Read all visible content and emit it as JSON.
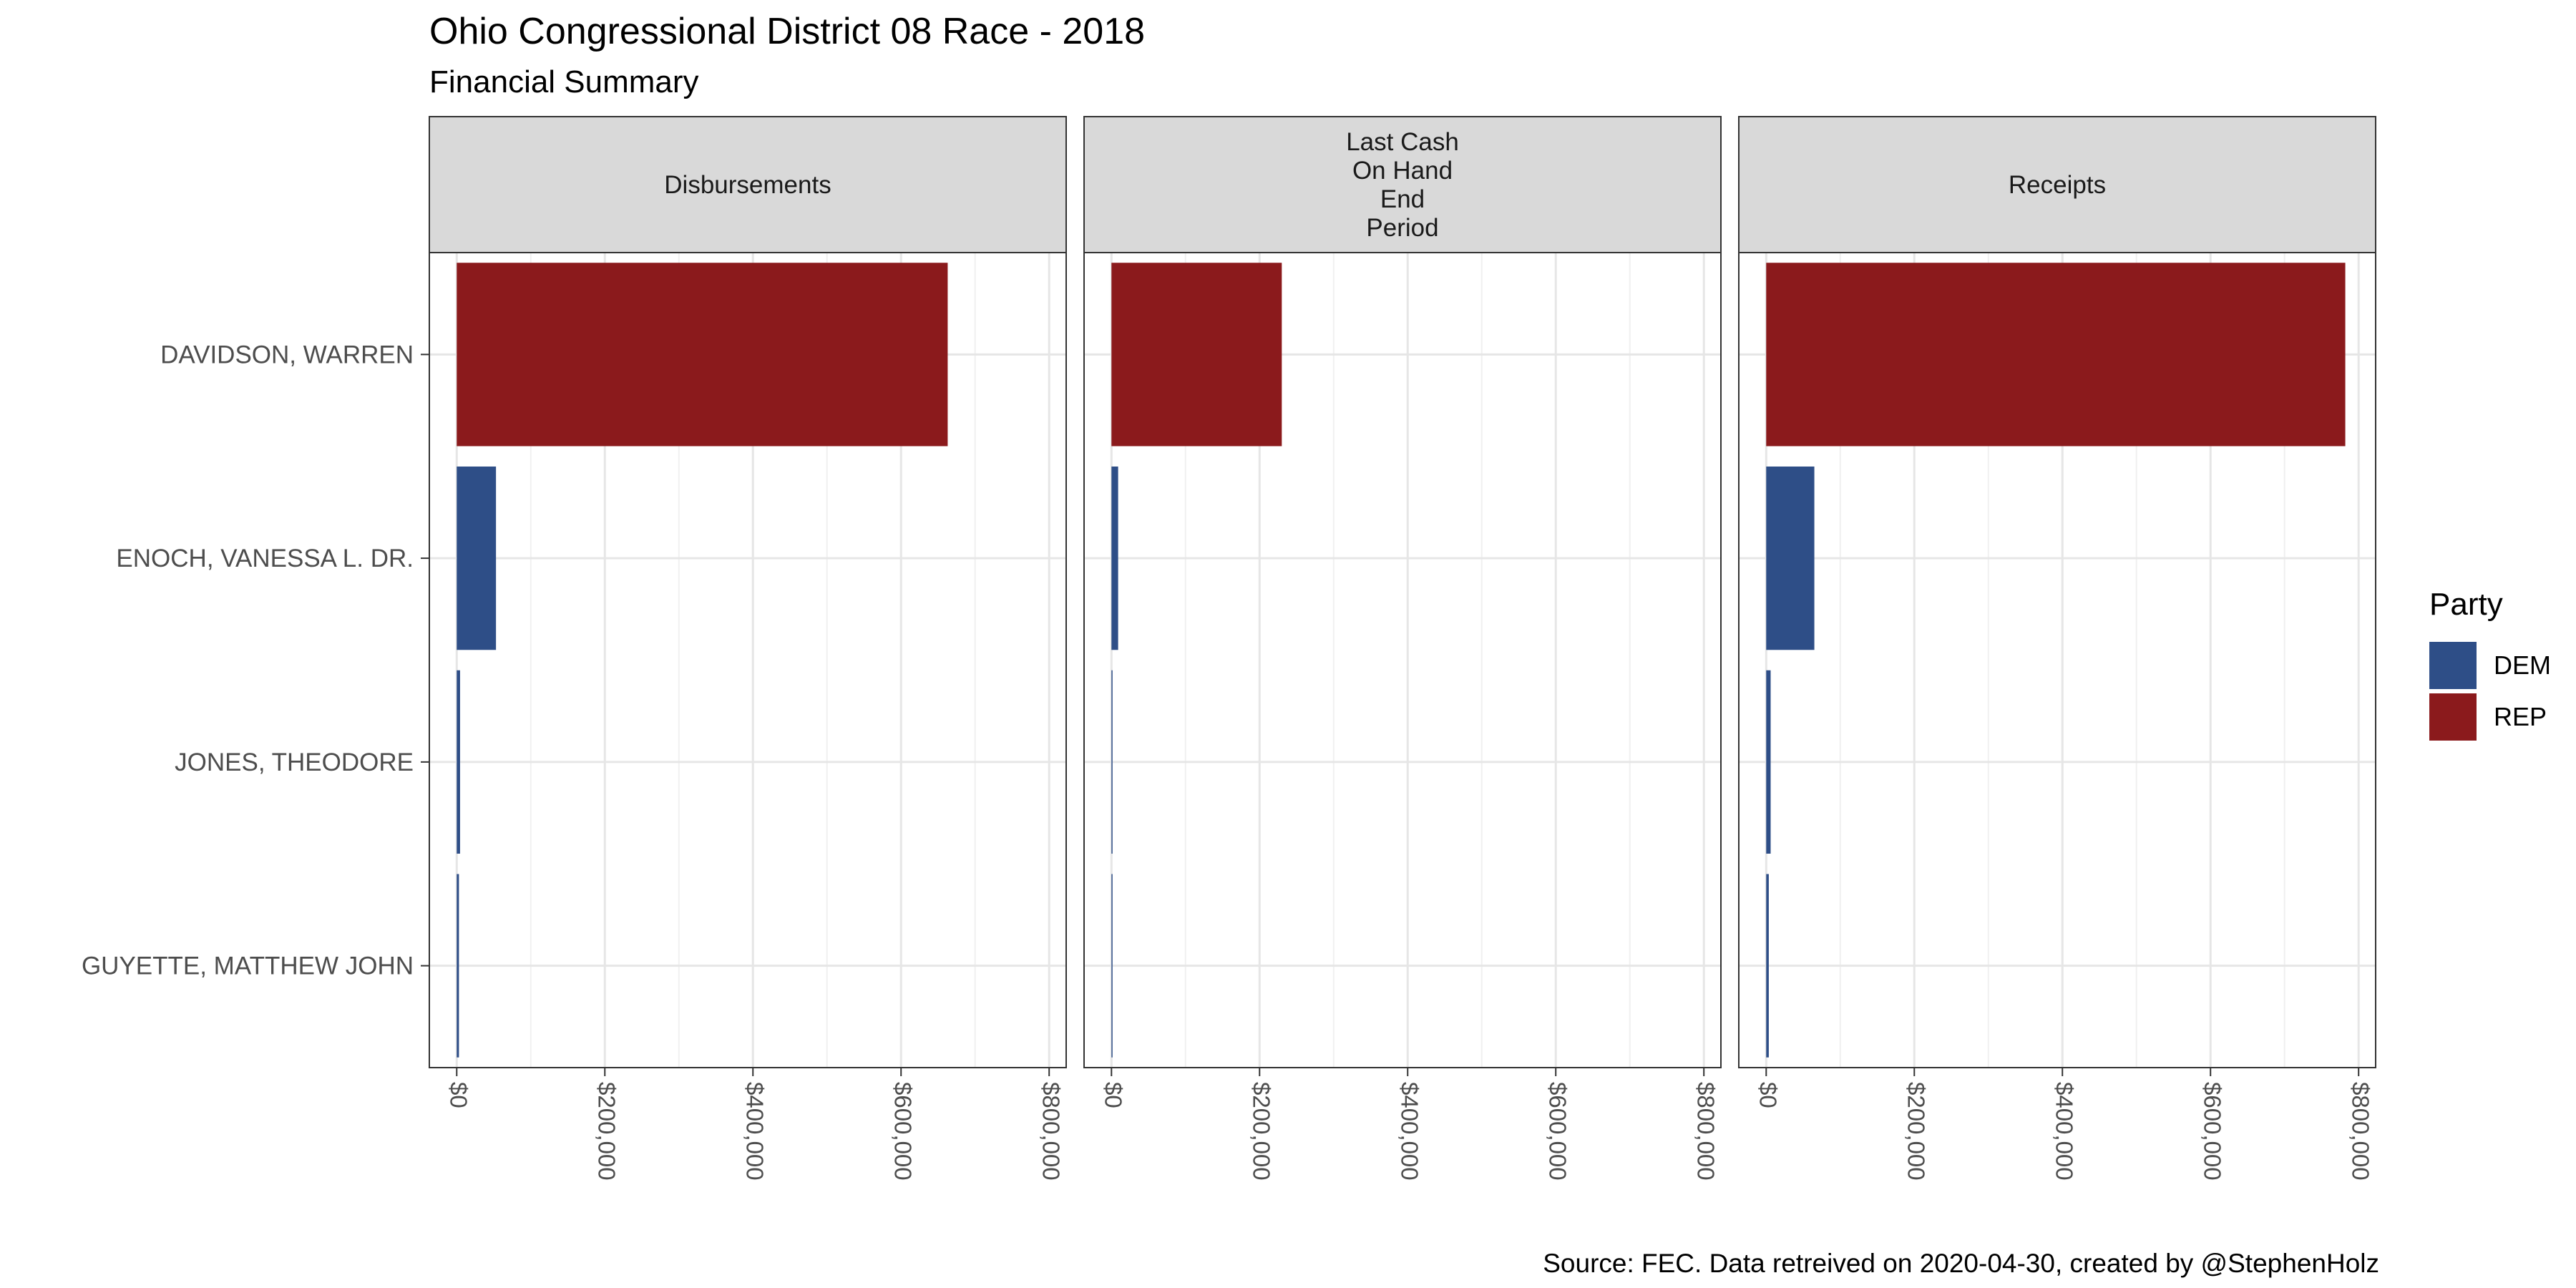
{
  "title": "Ohio Congressional District 08 Race - 2018",
  "subtitle": "Financial Summary",
  "caption": "Source: FEC. Data retreived on 2020-04-30, created by @StephenHolz",
  "legend": {
    "title": "Party",
    "items": [
      {
        "label": "DEM",
        "color": "#2e4e87"
      },
      {
        "label": "REP",
        "color": "#8b1a1c"
      }
    ]
  },
  "chart_data": {
    "type": "bar",
    "orientation": "horizontal",
    "facets": [
      "Disbursements",
      "Last Cash\nOn Hand\nEnd\nPeriod",
      "Receipts"
    ],
    "categories": [
      "DAVIDSON, WARREN",
      "ENOCH, VANESSA L. DR.",
      "JONES, THEODORE",
      "GUYETTE, MATTHEW JOHN"
    ],
    "party": [
      "REP",
      "DEM",
      "DEM",
      "DEM"
    ],
    "series": [
      {
        "facet": "Disbursements",
        "values": [
          663000,
          53000,
          4500,
          3000
        ]
      },
      {
        "facet": "Last Cash\nOn Hand\nEnd\nPeriod",
        "values": [
          230000,
          9000,
          1000,
          200
        ]
      },
      {
        "facet": "Receipts",
        "values": [
          782000,
          65000,
          6000,
          3500
        ]
      }
    ],
    "x_ticks": [
      "$0",
      "$200,000",
      "$400,000",
      "$600,000",
      "$800,000"
    ],
    "x_tick_values": [
      0,
      200000,
      400000,
      600000,
      800000
    ],
    "xlim": [
      -37000,
      823000
    ],
    "grid": true,
    "legend_position": "right"
  }
}
